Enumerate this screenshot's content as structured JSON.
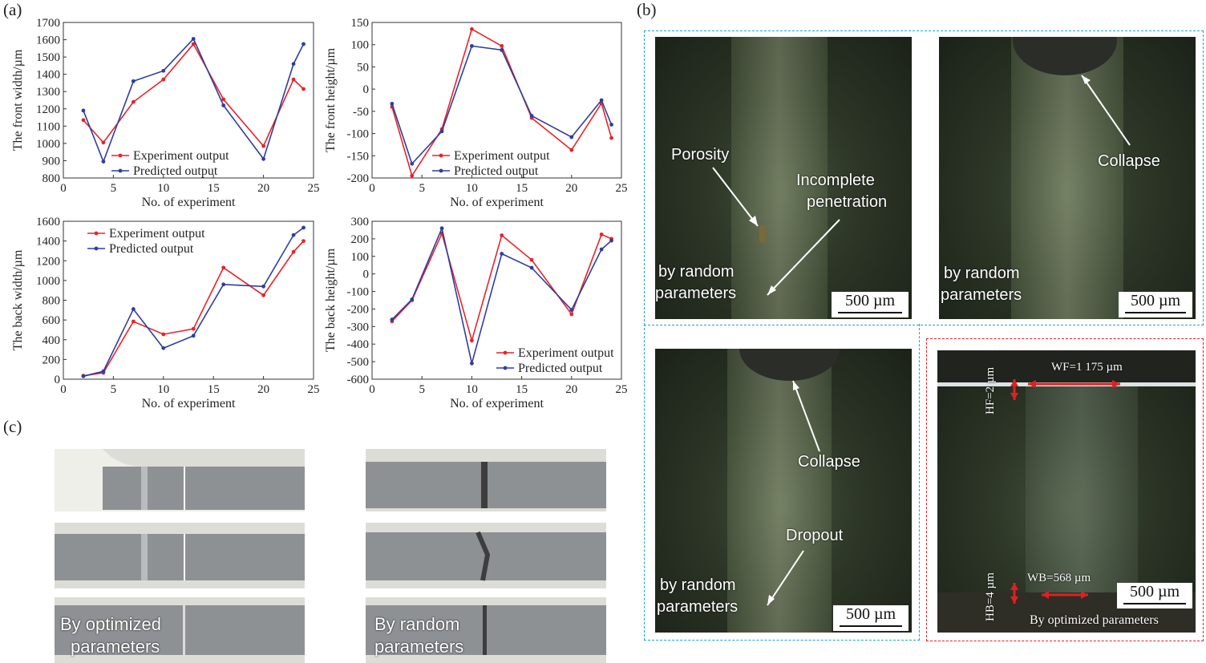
{
  "panel_labels": {
    "a": "(a)",
    "b": "(b)",
    "c": "(c)"
  },
  "colors": {
    "experiment": "#e8232a",
    "predicted": "#2e3e9e",
    "blue_frame": "#1aa3e0",
    "red_frame": "#e02020"
  },
  "chart_data": [
    {
      "id": "front_width",
      "type": "line",
      "ylabel": "The front width/µm",
      "xlabel": "No. of experiment",
      "xlim": [
        0,
        25
      ],
      "ylim": [
        800,
        1700
      ],
      "xticks": [
        0,
        5,
        10,
        15,
        20,
        25
      ],
      "yticks": [
        800,
        900,
        1000,
        1100,
        1200,
        1300,
        1400,
        1500,
        1600,
        1700
      ],
      "legend": "bottom-left",
      "x": [
        2,
        4,
        7,
        10,
        13,
        16,
        20,
        23,
        24
      ],
      "series": [
        {
          "name": "Experiment output",
          "color": "#e8232a",
          "values": [
            1135,
            1005,
            1240,
            1370,
            1575,
            1255,
            985,
            1370,
            1315
          ]
        },
        {
          "name": "Predicted output",
          "color": "#2e3e9e",
          "values": [
            1190,
            895,
            1360,
            1420,
            1605,
            1220,
            910,
            1460,
            1575
          ]
        }
      ]
    },
    {
      "id": "front_height",
      "type": "line",
      "ylabel": "The front height/µm",
      "xlabel": "No. of experiment",
      "xlim": [
        0,
        25
      ],
      "ylim": [
        -200,
        150
      ],
      "xticks": [
        0,
        5,
        10,
        15,
        20,
        25
      ],
      "yticks": [
        -200,
        -150,
        -100,
        -50,
        0,
        50,
        100,
        150
      ],
      "legend": "bottom-center",
      "x": [
        2,
        4,
        7,
        10,
        13,
        16,
        20,
        23,
        24
      ],
      "series": [
        {
          "name": "Experiment output",
          "color": "#e8232a",
          "values": [
            -40,
            -195,
            -90,
            135,
            97,
            -65,
            -137,
            -32,
            -110
          ]
        },
        {
          "name": "Predicted output",
          "color": "#2e3e9e",
          "values": [
            -33,
            -168,
            -95,
            97,
            88,
            -60,
            -108,
            -25,
            -80
          ]
        }
      ]
    },
    {
      "id": "back_width",
      "type": "line",
      "ylabel": "The back width/µm",
      "xlabel": "No. of experiment",
      "xlim": [
        0,
        25
      ],
      "ylim": [
        0,
        1600
      ],
      "xticks": [
        0,
        5,
        10,
        15,
        20,
        25
      ],
      "yticks": [
        0,
        200,
        400,
        600,
        800,
        1000,
        1200,
        1400,
        1600
      ],
      "legend": "top-left",
      "x": [
        2,
        4,
        7,
        10,
        13,
        16,
        20,
        23,
        24
      ],
      "series": [
        {
          "name": "Experiment output",
          "color": "#e8232a",
          "values": [
            35,
            65,
            585,
            455,
            510,
            1130,
            850,
            1290,
            1400
          ]
        },
        {
          "name": "Predicted output",
          "color": "#2e3e9e",
          "values": [
            30,
            80,
            710,
            315,
            440,
            960,
            940,
            1460,
            1535
          ]
        }
      ]
    },
    {
      "id": "back_height",
      "type": "line",
      "ylabel": "The back height/µm",
      "xlabel": "No. of experiment",
      "xlim": [
        0,
        25
      ],
      "ylim": [
        -600,
        300
      ],
      "xticks": [
        0,
        5,
        10,
        15,
        20,
        25
      ],
      "yticks": [
        -600,
        -500,
        -400,
        -300,
        -200,
        -100,
        0,
        100,
        200,
        300
      ],
      "legend": "bottom-right",
      "x": [
        2,
        4,
        7,
        10,
        13,
        16,
        20,
        23,
        24
      ],
      "series": [
        {
          "name": "Experiment output",
          "color": "#e8232a",
          "values": [
            -270,
            -150,
            230,
            -380,
            220,
            80,
            -230,
            225,
            200
          ]
        },
        {
          "name": "Predicted output",
          "color": "#2e3e9e",
          "values": [
            -260,
            -145,
            260,
            -510,
            115,
            35,
            -205,
            140,
            190
          ]
        }
      ]
    }
  ],
  "micrographs": {
    "m1": {
      "annotations": [
        "Porosity",
        "Incomplete",
        "penetration"
      ],
      "caption": [
        "by random",
        "parameters"
      ],
      "scale": "500 µm"
    },
    "m2": {
      "annotations": [
        "Collapse"
      ],
      "caption": [
        "by random",
        "parameters"
      ],
      "scale": "500 µm"
    },
    "m3": {
      "annotations": [
        "Collapse",
        "Dropout"
      ],
      "caption": [
        "by random",
        "parameters"
      ],
      "scale": "500 µm"
    },
    "m4": {
      "hf": "HF=2 µm",
      "wf": "WF=1 175 µm",
      "hb": "HB=4 µm",
      "wb": "WB=568 µm",
      "scale": "500 µm",
      "caption": "By optimized parameters"
    }
  },
  "specimens": {
    "left_caption": [
      "By optimized",
      "parameters"
    ],
    "right_caption": [
      "By random",
      "parameters"
    ]
  }
}
